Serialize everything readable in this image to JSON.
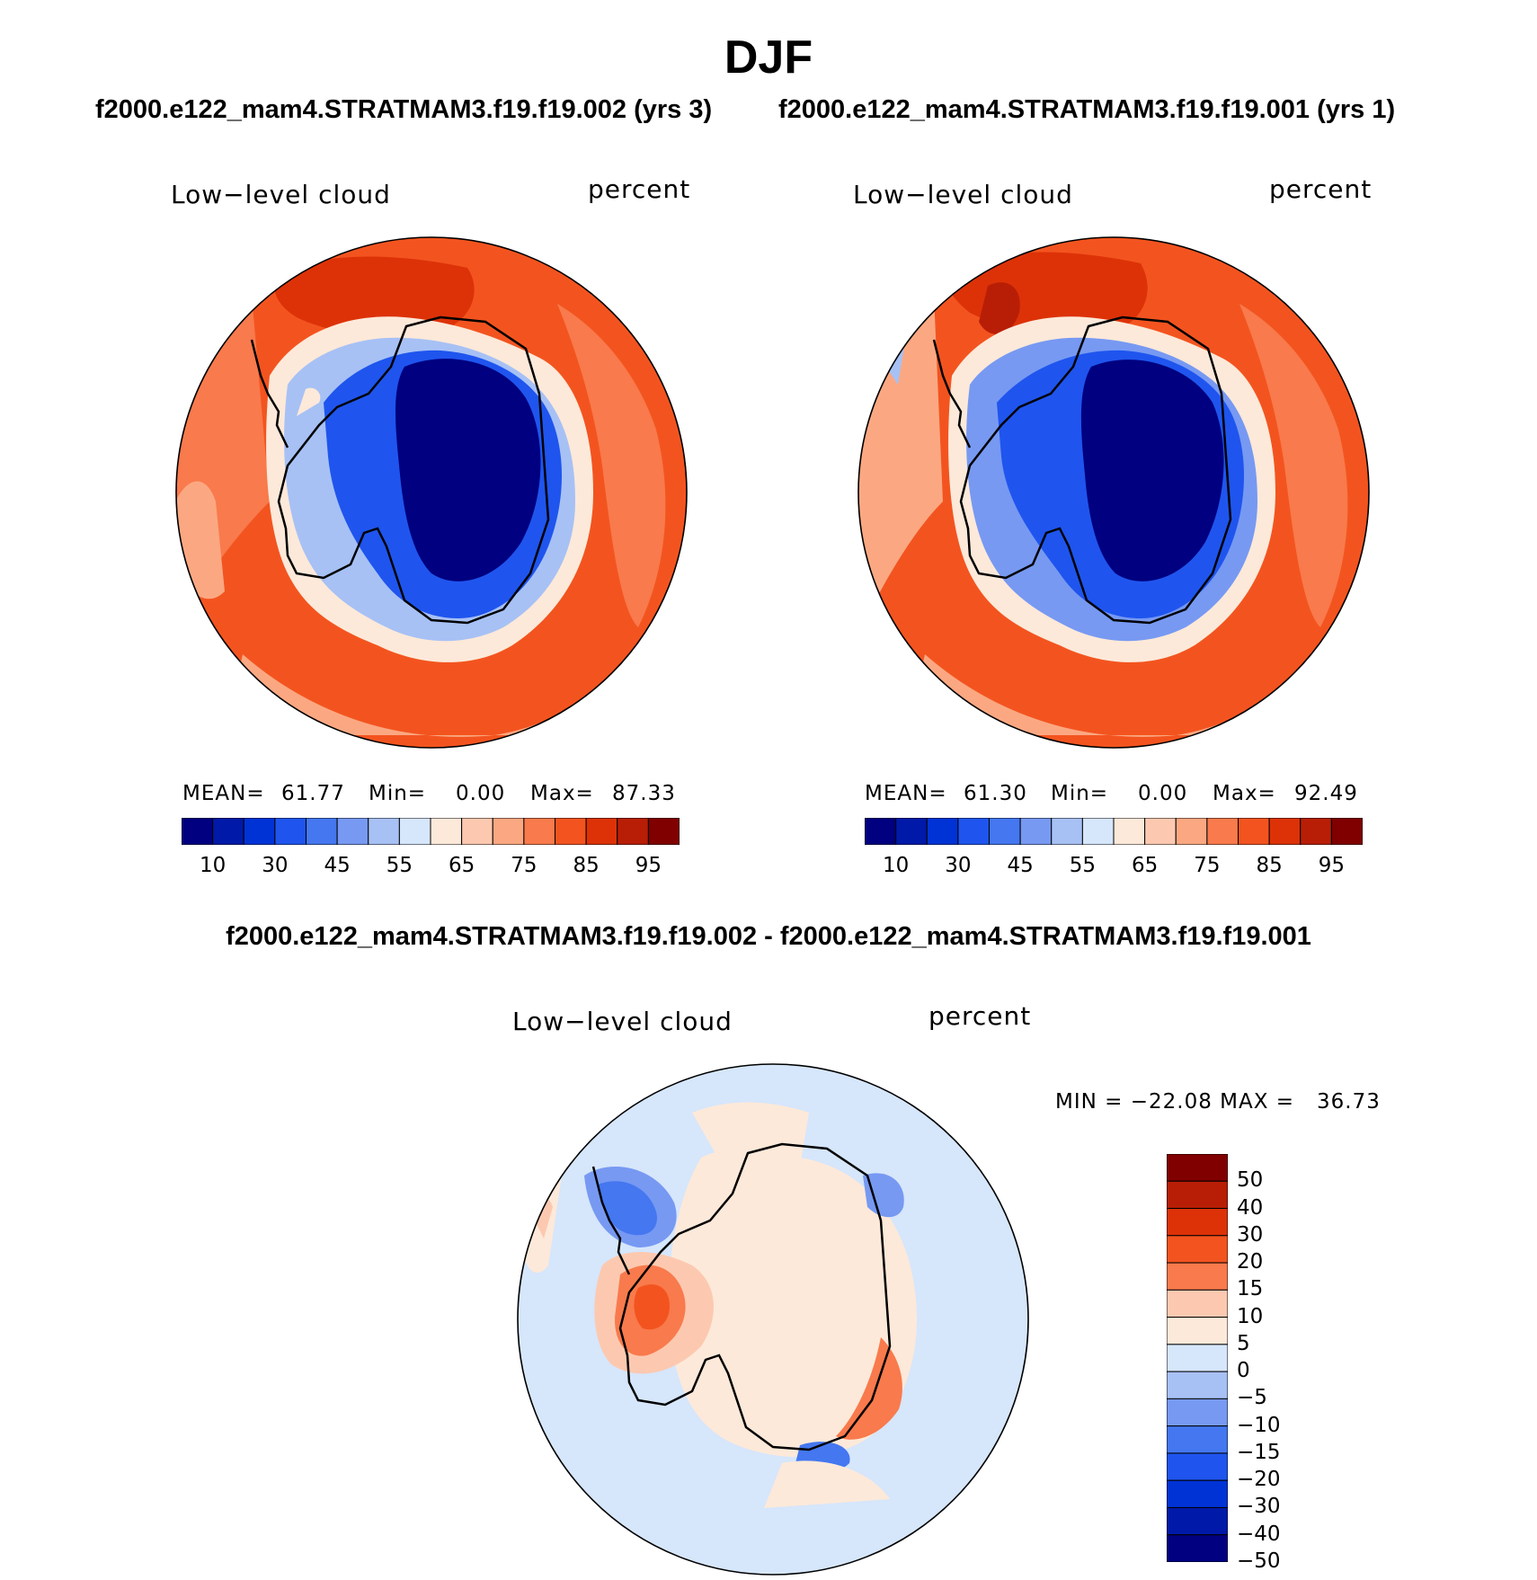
{
  "figure": {
    "title": "DJF",
    "subtitle_left": "f2000.e122_mam4.STRATMAM3.f19.f19.002 (yrs 3)",
    "subtitle_right": "f2000.e122_mam4.STRATMAM3.f19.f19.001 (yrs 1)",
    "diff_title": "f2000.e122_mam4.STRATMAM3.f19.f19.002 - f2000.e122_mam4.STRATMAM3.f19.f19.001"
  },
  "panels": [
    {
      "id": "case1",
      "variable": "Low−level cloud",
      "units": "percent",
      "stats": {
        "mean_label": "MEAN=",
        "mean": "61.77",
        "min_label": "Min=",
        "min": "0.00",
        "max_label": "Max=",
        "max": "87.33"
      }
    },
    {
      "id": "case2",
      "variable": "Low−level cloud",
      "units": "percent",
      "stats": {
        "mean_label": "MEAN=",
        "mean": "61.30",
        "min_label": "Min=",
        "min": "0.00",
        "max_label": "Max=",
        "max": "92.49"
      }
    },
    {
      "id": "difference",
      "variable": "Low−level cloud",
      "units": "percent",
      "minmax": "MIN = −22.08 MAX =   36.73"
    }
  ],
  "colorbars": {
    "absolute": {
      "labels": [
        "10",
        "30",
        "45",
        "55",
        "65",
        "75",
        "85",
        "95"
      ],
      "colors": [
        "#000080",
        "#0019a8",
        "#0033d6",
        "#1f55ee",
        "#4477f0",
        "#7799f2",
        "#a7c1f5",
        "#d6e6fb",
        "#fde9d9",
        "#fcc9b0",
        "#fba882",
        "#f97a4c",
        "#f3541f",
        "#dd3208",
        "#b81e06",
        "#800000"
      ]
    },
    "difference": {
      "labels": [
        "50",
        "40",
        "30",
        "20",
        "15",
        "10",
        "5",
        "0",
        "−5",
        "−10",
        "−15",
        "−20",
        "−30",
        "−40",
        "−50"
      ],
      "colors_top_to_bottom": [
        "#800000",
        "#b81e06",
        "#dd3208",
        "#f3541f",
        "#f97a4c",
        "#fcc9b0",
        "#fde9d9",
        "#d6e6fb",
        "#a7c1f5",
        "#7799f2",
        "#4477f0",
        "#1f55ee",
        "#0033d6",
        "#0019a8",
        "#000080"
      ]
    }
  }
}
